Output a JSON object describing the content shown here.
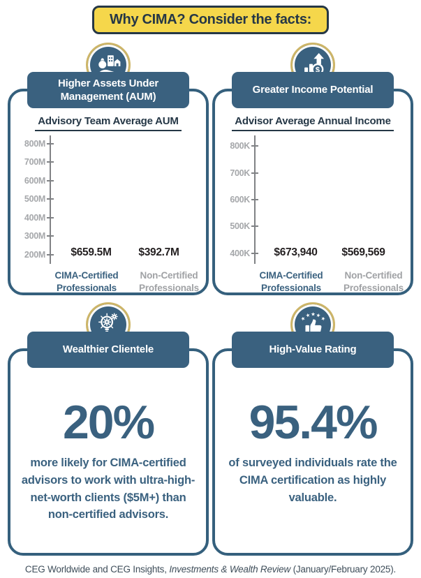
{
  "banner": {
    "title": "Why CIMA? Consider the facts:"
  },
  "colors": {
    "navy": "#3A617F",
    "dark_navy": "#253746",
    "banner_yellow": "#F5D74B",
    "gold_ring": "#CDB568",
    "gray_bar": "#939598",
    "gray_text": "#A0A2A5"
  },
  "panels": [
    {
      "icon": "assets-icon",
      "header": "Higher Assets Under Management (AUM)"
    },
    {
      "icon": "income-icon",
      "header": "Greater Income Potential"
    },
    {
      "icon": "lightbulb-icon",
      "header": "Wealthier Clientele"
    },
    {
      "icon": "thumbs-up-icon",
      "header": "High-Value Rating"
    }
  ],
  "chart_data": [
    {
      "type": "bar",
      "title": "Advisory Team Average AUM",
      "categories": [
        "CIMA-Certified Professionals",
        "Non-Certified Professionals"
      ],
      "values": [
        659.5,
        392.7
      ],
      "value_labels": [
        "$659.5M",
        "$392.7M"
      ],
      "unit": "USD millions",
      "ylim": [
        150,
        830
      ],
      "yticks": [
        {
          "value": 800,
          "label": "800M"
        },
        {
          "value": 700,
          "label": "700M"
        },
        {
          "value": 600,
          "label": "600M"
        },
        {
          "value": 500,
          "label": "500M"
        },
        {
          "value": 400,
          "label": "400M"
        },
        {
          "value": 300,
          "label": "300M"
        },
        {
          "value": 200,
          "label": "200M"
        }
      ],
      "bar_colors": [
        "#3A617F",
        "#939598"
      ],
      "category_colors": [
        "#3A617F",
        "#A0A2A5"
      ],
      "grid": false,
      "legend": "none"
    },
    {
      "type": "bar",
      "title": "Advisor Average Annual Income",
      "categories": [
        "CIMA-Certified Professionals",
        "Non-Certified Professionals"
      ],
      "values": [
        673940,
        569569
      ],
      "value_labels": [
        "$673,940",
        "$569,569"
      ],
      "unit": "USD",
      "ylim": [
        360000,
        830000
      ],
      "yticks": [
        {
          "value": 800000,
          "label": "800K"
        },
        {
          "value": 700000,
          "label": "700K"
        },
        {
          "value": 600000,
          "label": "600K"
        },
        {
          "value": 500000,
          "label": "500K"
        },
        {
          "value": 400000,
          "label": "400K"
        }
      ],
      "bar_colors": [
        "#3A617F",
        "#939598"
      ],
      "category_colors": [
        "#3A617F",
        "#A0A2A5"
      ],
      "grid": false,
      "legend": "none"
    }
  ],
  "stats": [
    {
      "headline": "20%",
      "description": "more likely for CIMA-certified advisors to work with ultra-high-net-worth clients ($5M+) than non-certified advisors."
    },
    {
      "headline": "95.4%",
      "description": "of surveyed individuals rate the CIMA certification as highly valuable."
    }
  ],
  "footer": {
    "prefix": "CEG Worldwide and CEG Insights, ",
    "source_italic": "Investments & Wealth Review",
    "suffix": " (January/February 2025)."
  }
}
